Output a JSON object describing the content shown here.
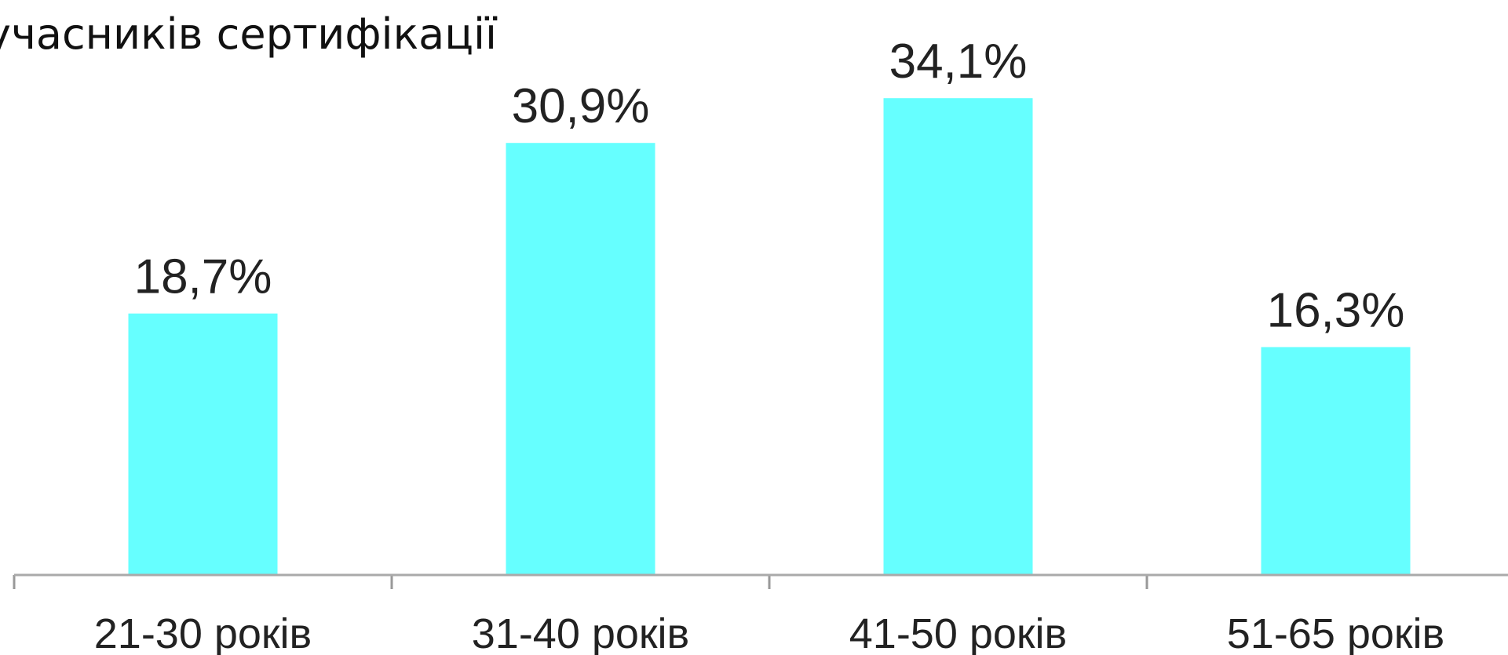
{
  "chart_data": {
    "type": "bar",
    "title": "учасників сертифікації",
    "categories": [
      "21-30 років",
      "31-40 років",
      "41-50 років",
      "51-65 років"
    ],
    "values": [
      18.7,
      30.9,
      34.1,
      16.3
    ],
    "value_labels": [
      "18,7%",
      "30,9%",
      "34,1%",
      "16,3%"
    ],
    "color": "#66ffff",
    "ylim": [
      0,
      40
    ]
  }
}
